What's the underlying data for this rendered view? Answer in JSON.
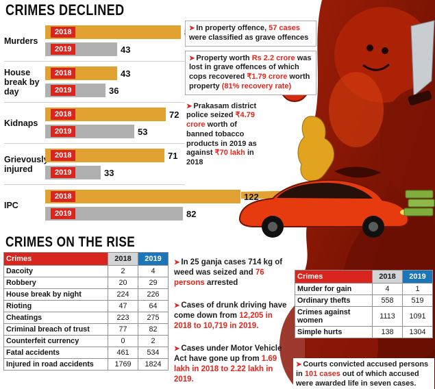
{
  "colors": {
    "red": "#d9251d",
    "highlight": "#e4251b",
    "blue": "#1b75bb",
    "bar_2018": "#e2a231",
    "bar_2019": "#b0b0b0"
  },
  "bullet_char": "➤",
  "declined": {
    "title": "CRIMES DECLINED"
  },
  "rise": {
    "title": "CRIMES ON THE RISE"
  },
  "chart_data": [
    {
      "type": "bar",
      "title": "CRIMES DECLINED",
      "orientation": "horizontal",
      "categories": [
        "Murders",
        "House break by day",
        "Kidnaps",
        "Grievously injured",
        "IPC"
      ],
      "series": [
        {
          "name": "2018",
          "values": [
            81,
            43,
            72,
            71,
            122
          ]
        },
        {
          "name": "2019",
          "values": [
            43,
            36,
            53,
            33,
            82
          ]
        }
      ],
      "xlim": [
        0,
        122
      ],
      "legend_position": "on-bar"
    },
    {
      "type": "table",
      "title": "CRIMES ON THE RISE",
      "columns": [
        "Crimes",
        "2018",
        "2019"
      ],
      "rows": [
        [
          "Dacoity",
          2,
          4
        ],
        [
          "Robbery",
          20,
          29
        ],
        [
          "House break by night",
          224,
          226
        ],
        [
          "Rioting",
          47,
          64
        ],
        [
          "Cheatings",
          223,
          275
        ],
        [
          "Criminal breach of trust",
          77,
          82
        ],
        [
          "Counterfeit currency",
          0,
          2
        ],
        [
          "Fatal accidents",
          461,
          534
        ],
        [
          "Injured in road accidents",
          1769,
          1824
        ]
      ]
    },
    {
      "type": "table",
      "title": "",
      "columns": [
        "Crimes",
        "2018",
        "2019"
      ],
      "rows": [
        [
          "Murder for gain",
          4,
          1
        ],
        [
          "Ordinary thefts",
          558,
          519
        ],
        [
          "Crimes against women",
          1113,
          1091
        ],
        [
          "Simple hurts",
          138,
          1304
        ]
      ]
    }
  ],
  "notes_right": [
    {
      "segments": [
        {
          "t": "In property offence, ",
          "hl": false
        },
        {
          "t": "57 cases",
          "hl": true
        },
        {
          "t": " were classified as grave offences",
          "hl": false
        }
      ]
    },
    {
      "segments": [
        {
          "t": "Property worth ",
          "hl": false
        },
        {
          "t": "Rs 2.2 crore",
          "hl": true
        },
        {
          "t": " was lost in grave offences of which cops recovered ",
          "hl": false
        },
        {
          "t": "₹1.79 crore",
          "hl": true
        },
        {
          "t": " worth property ",
          "hl": false
        },
        {
          "t": "(81% recovery rate)",
          "hl": true
        }
      ]
    },
    {
      "segments": [
        {
          "t": "Prakasam district police seized ",
          "hl": false
        },
        {
          "t": "₹4.79 crore",
          "hl": true
        },
        {
          "t": " worth of banned tobacco products in 2019 as against ",
          "hl": false
        },
        {
          "t": "₹70 lakh",
          "hl": true
        },
        {
          "t": " in 2018",
          "hl": false
        }
      ]
    }
  ],
  "notes_middle": [
    {
      "segments": [
        {
          "t": "In 25 ganja cases 714 kg of weed was seized and ",
          "hl": false
        },
        {
          "t": "76 persons",
          "hl": true
        },
        {
          "t": " arrested",
          "hl": false
        }
      ]
    },
    {
      "segments": [
        {
          "t": "Cases of drunk driving have come down from ",
          "hl": false
        },
        {
          "t": "12,205 in 2018 to 10,719 in 2019.",
          "hl": true
        }
      ]
    },
    {
      "segments": [
        {
          "t": "Cases under Motor Vehicle Act have gone up from ",
          "hl": false
        },
        {
          "t": "1.69 lakh in 2018 to 2.22 lakh in 2019.",
          "hl": true
        }
      ]
    }
  ],
  "notes_bottom_right": [
    {
      "segments": [
        {
          "t": "Courts convicted accused persons in ",
          "hl": false
        },
        {
          "t": "101 cases",
          "hl": true
        },
        {
          "t": " out of which accused were awarded life in seven cases.",
          "hl": false
        }
      ]
    }
  ]
}
